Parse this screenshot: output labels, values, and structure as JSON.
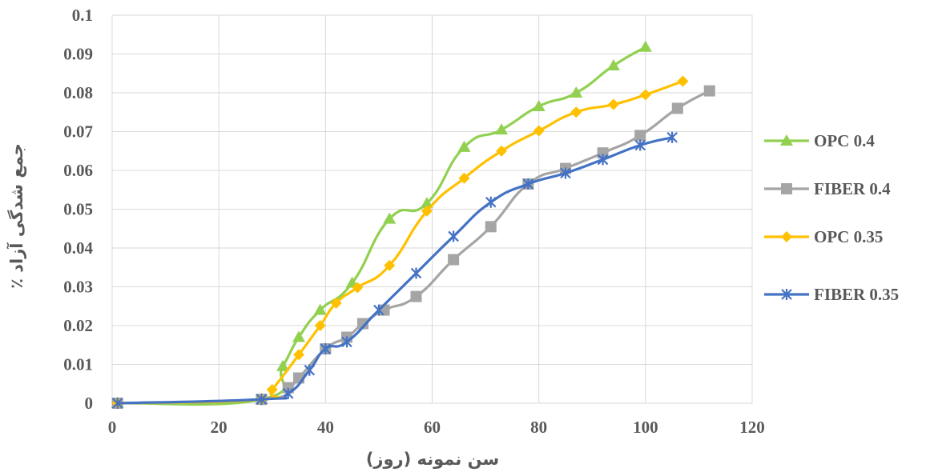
{
  "chart_data": {
    "type": "line",
    "title": "",
    "xlabel": "سن نمونه (روز)",
    "ylabel": "جمع شدگی آزاد ٪",
    "xlim": [
      0,
      120
    ],
    "ylim": [
      0,
      0.1
    ],
    "x_ticks": [
      "0",
      "20",
      "40",
      "60",
      "80",
      "100",
      "120"
    ],
    "y_ticks": [
      "0",
      "0.01",
      "0.02",
      "0.03",
      "0.04",
      "0.05",
      "0.06",
      "0.07",
      "0.08",
      "0.09",
      "0.1"
    ],
    "grid": true,
    "legend_position": "right",
    "series": [
      {
        "name": "OPC 0.4",
        "color": "#92D050",
        "marker": "triangle",
        "x": [
          1,
          28,
          32,
          35,
          39,
          45,
          52,
          59,
          66,
          73,
          80,
          87,
          94,
          100
        ],
        "y": [
          0,
          0.001,
          0.0095,
          0.017,
          0.024,
          0.031,
          0.0475,
          0.0515,
          0.066,
          0.0705,
          0.0765,
          0.08,
          0.087,
          0.0918
        ]
      },
      {
        "name": "FIBER 0.4",
        "color": "#A5A5A5",
        "marker": "square",
        "x": [
          1,
          28,
          33,
          35,
          40,
          44,
          47,
          51,
          57,
          64,
          71,
          78,
          85,
          92,
          99,
          106,
          112
        ],
        "y": [
          0,
          0.001,
          0.004,
          0.0065,
          0.014,
          0.017,
          0.0205,
          0.024,
          0.0275,
          0.037,
          0.0455,
          0.0565,
          0.0605,
          0.0645,
          0.069,
          0.076,
          0.0805
        ]
      },
      {
        "name": "OPC 0.35",
        "color": "#FFC000",
        "marker": "diamond",
        "x": [
          1,
          28,
          30,
          35,
          39,
          42,
          46,
          52,
          59,
          66,
          73,
          80,
          87,
          94,
          100,
          107
        ],
        "y": [
          0,
          0.001,
          0.0035,
          0.0125,
          0.02,
          0.0258,
          0.0298,
          0.0355,
          0.0495,
          0.058,
          0.065,
          0.0702,
          0.075,
          0.077,
          0.0795,
          0.083
        ]
      },
      {
        "name": "FIBER 0.35",
        "color": "#4472C4",
        "marker": "asterisk",
        "x": [
          1,
          28,
          33,
          37,
          40,
          44,
          50,
          57,
          64,
          71,
          78,
          85,
          92,
          99,
          105
        ],
        "y": [
          0,
          0.001,
          0.0025,
          0.0085,
          0.014,
          0.0158,
          0.024,
          0.0335,
          0.043,
          0.0518,
          0.0565,
          0.0593,
          0.0628,
          0.0665,
          0.0685
        ]
      }
    ]
  }
}
